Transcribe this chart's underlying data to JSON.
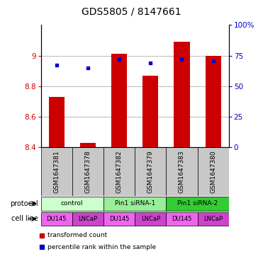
{
  "title": "GDS5805 / 8147661",
  "samples": [
    "GSM1647381",
    "GSM1647378",
    "GSM1647382",
    "GSM1647379",
    "GSM1647383",
    "GSM1647380"
  ],
  "red_values": [
    8.73,
    8.43,
    9.01,
    8.87,
    9.09,
    9.0
  ],
  "blue_values_pct": [
    67,
    65,
    72,
    69,
    72,
    71
  ],
  "ylim_left": [
    8.4,
    9.2
  ],
  "ylim_right": [
    0,
    100
  ],
  "yticks_left": [
    8.4,
    8.6,
    8.8,
    9.0
  ],
  "ytick_labels_left": [
    "8.4",
    "8.6",
    "8.8",
    "9"
  ],
  "yticks_right": [
    0,
    25,
    50,
    75,
    100
  ],
  "ytick_labels_right": [
    "0",
    "25",
    "50",
    "75",
    "100%"
  ],
  "protocols": [
    {
      "label": "control",
      "span": [
        0,
        2
      ],
      "color": "#ccffcc"
    },
    {
      "label": "Pin1 siRNA-1",
      "span": [
        2,
        4
      ],
      "color": "#99ee99"
    },
    {
      "label": "Pin1 siRNA-2",
      "span": [
        4,
        6
      ],
      "color": "#33cc33"
    }
  ],
  "cell_lines": [
    {
      "label": "DU145",
      "color": "#ee66ee"
    },
    {
      "label": "LNCaP",
      "color": "#cc44cc"
    },
    {
      "label": "DU145",
      "color": "#ee66ee"
    },
    {
      "label": "LNCaP",
      "color": "#cc44cc"
    },
    {
      "label": "DU145",
      "color": "#ee66ee"
    },
    {
      "label": "LNCaP",
      "color": "#cc44cc"
    }
  ],
  "bar_color": "#cc0000",
  "dot_color": "#0000cc",
  "bar_width": 0.5,
  "bar_bottom": 8.4,
  "legend_red_label": "transformed count",
  "legend_blue_label": "percentile rank within the sample",
  "protocol_label": "protocol",
  "cell_line_label": "cell line",
  "sample_bg_color": "#c8c8c8",
  "title_fontsize": 10,
  "tick_fontsize": 7.5,
  "sample_label_fontsize": 6.5
}
